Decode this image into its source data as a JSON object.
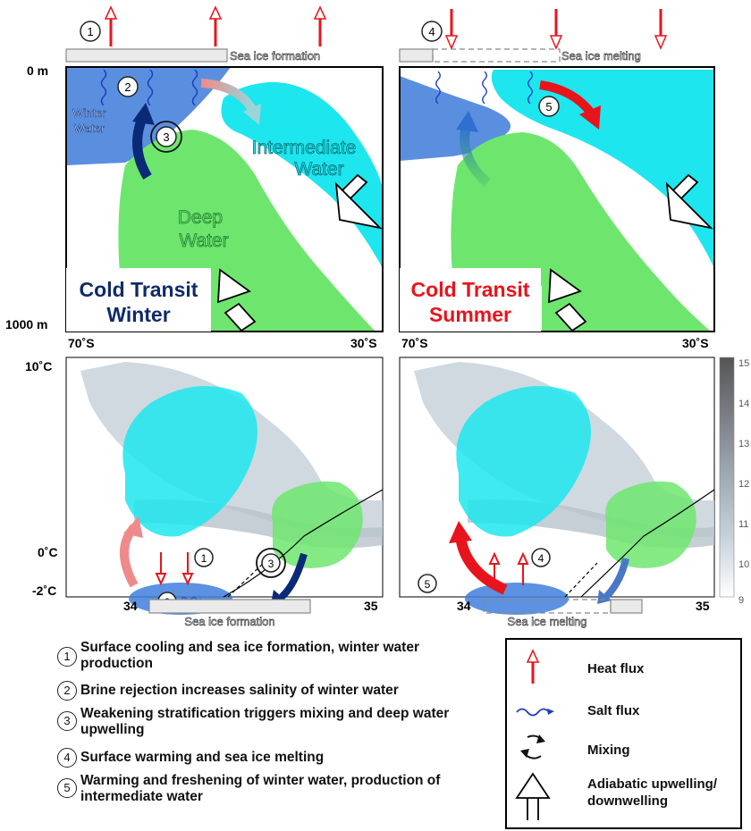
{
  "panels": {
    "top_left": {
      "title_line1": "Cold Transit",
      "title_line2": "Winter",
      "ice_label": "Sea ice formation",
      "winter_water_line1": "Winter",
      "winter_water_line2": "Water",
      "intermediate_line1": "Intermediate",
      "intermediate_line2": "Water",
      "deep_line1": "Deep",
      "deep_line2": "Water"
    },
    "top_right": {
      "title_line1": "Cold Transit",
      "title_line2": "Summer",
      "ice_label": "Sea ice melting"
    },
    "bottom_left": {
      "ice_label": "Sea ice formation"
    },
    "bottom_right": {
      "ice_label": "Sea ice melting"
    }
  },
  "axes": {
    "depth_top": "0 m",
    "depth_bottom": "1000 m",
    "lat_left": "70˚S",
    "lat_right": "30˚S",
    "temp_top": "10˚C",
    "temp_zero": "0˚C",
    "temp_bottom": "-2˚C",
    "sal_left": "34",
    "sal_right": "35"
  },
  "colorbar": {
    "ticks": [
      "15",
      "14",
      "13",
      "12",
      "11",
      "10",
      "9"
    ],
    "colors": {
      "low": "#ffffff",
      "mid": "#b9c3cd",
      "high": "#5a5a5a"
    }
  },
  "circle_numbers": [
    "1",
    "2",
    "3",
    "4",
    "5"
  ],
  "legend": [
    {
      "num": "1",
      "line1": "Surface cooling and sea ice formation, winter water",
      "line2": "production"
    },
    {
      "num": "2",
      "line1": "Brine rejection increases salinity of winter water",
      "line2": ""
    },
    {
      "num": "3",
      "line1": "Weakening stratification triggers mixing and deep water",
      "line2": "upwelling"
    },
    {
      "num": "4",
      "line1": "Surface warming and sea ice melting",
      "line2": ""
    },
    {
      "num": "5",
      "line1": "Warming and freshening of winter water, production of",
      "line2": "intermediate water"
    }
  ],
  "key": {
    "heat": "Heat flux",
    "salt": "Salt flux",
    "mixing": "Mixing",
    "adiabatic_line1": "Adiabatic upwelling/",
    "adiabatic_line2": "downwelling"
  },
  "colors": {
    "winter_water": "#4f86dc",
    "intermediate": "#1de3ec",
    "deep": "#6ee26e",
    "heat": "#e8141c",
    "dark_blue": "#0a2a78",
    "title_winter": "#102a6a",
    "title_summer": "#e8141c"
  }
}
